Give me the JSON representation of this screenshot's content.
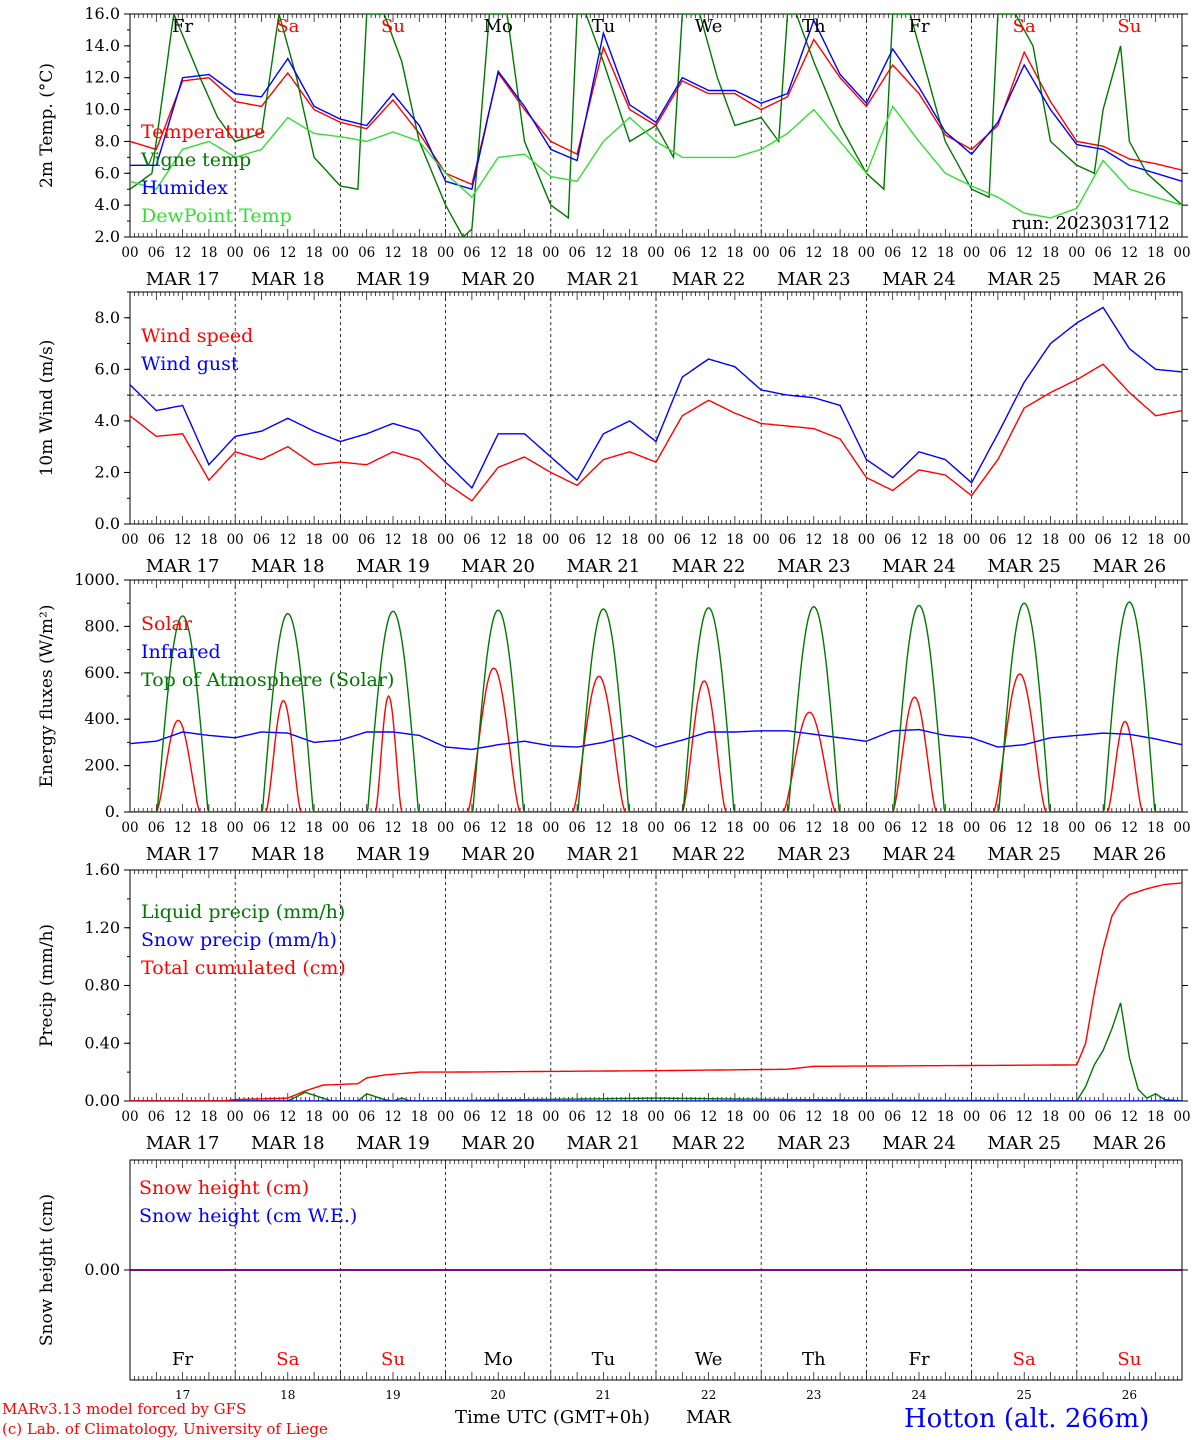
{
  "days": {
    "dates": [
      "MAR 17",
      "MAR 18",
      "MAR 19",
      "MAR 20",
      "MAR 21",
      "MAR 22",
      "MAR 23",
      "MAR 24",
      "MAR 25",
      "MAR 26"
    ],
    "weekdays": [
      "Fr",
      "Sa",
      "Su",
      "Mo",
      "Tu",
      "We",
      "Th",
      "Fr",
      "Sa",
      "Su"
    ],
    "weekend_flags": [
      false,
      true,
      true,
      false,
      false,
      false,
      false,
      false,
      true,
      true
    ],
    "day_numbers": [
      "17",
      "18",
      "19",
      "20",
      "21",
      "22",
      "23",
      "24",
      "25",
      "26"
    ],
    "hour_ticks": [
      "00",
      "06",
      "12",
      "18"
    ],
    "final_tick": "00"
  },
  "colors": {
    "red": "#ff0000",
    "blue": "#0000ff",
    "dark_green": "#007700",
    "light_green": "#33dd33",
    "purple": "#7f007f",
    "weekend_label": "#ff0000",
    "weekday_label": "#000000"
  },
  "footer": {
    "model": "MARv3.13 model forced by GFS",
    "lab": "(c) Lab. of Climatology, University of Liege",
    "axis_title": "Time UTC (GMT+0h)",
    "month": "MAR",
    "station": "Hotton (alt. 266m)"
  },
  "chart_data": [
    {
      "type": "line",
      "ylabel": "2m Temp. (°C)",
      "ylim": [
        2.0,
        16.0
      ],
      "yticks": [
        "2.0",
        "4.0",
        "6.0",
        "8.0",
        "10.0",
        "12.0",
        "14.0",
        "16.0"
      ],
      "xlim_hours": [
        0,
        240
      ],
      "annotation": "run: 2023031712",
      "series": [
        {
          "name": "Temperature",
          "color": "#ff0000",
          "x": [
            0,
            6,
            12,
            18,
            24,
            30,
            36,
            42,
            48,
            54,
            60,
            66,
            72,
            78,
            84,
            90,
            96,
            102,
            108,
            114,
            120,
            126,
            132,
            138,
            144,
            150,
            156,
            162,
            168,
            174,
            180,
            186,
            192,
            198,
            204,
            210,
            216,
            222,
            228,
            234,
            240
          ],
          "y": [
            8.0,
            7.5,
            11.8,
            12.0,
            10.5,
            10.2,
            12.3,
            10.0,
            9.2,
            8.8,
            10.6,
            8.5,
            6.0,
            5.3,
            12.3,
            10.0,
            8.0,
            7.2,
            13.9,
            10.0,
            9.0,
            11.8,
            11.0,
            11.0,
            10.0,
            10.8,
            14.4,
            12.0,
            10.2,
            12.8,
            11.0,
            8.4,
            7.5,
            9.0,
            13.6,
            10.5,
            8.0,
            7.7,
            6.9,
            6.6,
            6.2
          ]
        },
        {
          "name": "Vigne temp",
          "color": "#007700",
          "x": [
            0,
            5,
            10,
            13,
            16,
            20,
            24,
            30,
            34,
            36,
            38,
            42,
            48,
            52,
            54,
            58,
            62,
            66,
            72,
            76,
            78,
            82,
            86,
            90,
            96,
            100,
            102,
            104,
            108,
            114,
            120,
            124,
            126,
            130,
            134,
            138,
            144,
            148,
            150,
            152,
            156,
            162,
            168,
            172,
            174,
            178,
            182,
            186,
            192,
            196,
            198,
            202,
            206,
            210,
            216,
            220,
            222,
            226,
            228,
            232,
            236,
            240
          ],
          "y": [
            5.0,
            6.0,
            16.0,
            14.0,
            12.0,
            9.5,
            8.0,
            8.5,
            16.0,
            14.0,
            12.0,
            7.0,
            5.2,
            5.0,
            16.0,
            16.0,
            13.0,
            8.0,
            4.0,
            2.0,
            2.5,
            16.0,
            16.0,
            8.0,
            4.0,
            3.2,
            16.0,
            16.0,
            13.0,
            8.0,
            9.0,
            7.0,
            16.0,
            16.0,
            12.0,
            9.0,
            9.5,
            8.0,
            16.0,
            16.0,
            13.0,
            9.0,
            6.0,
            5.0,
            16.0,
            16.0,
            12.0,
            8.0,
            5.0,
            4.5,
            16.0,
            16.0,
            14.0,
            8.0,
            6.5,
            6.0,
            10.0,
            14.0,
            8.0,
            6.0,
            5.0,
            4.0
          ]
        },
        {
          "name": "Humidex",
          "color": "#0000ff",
          "x": [
            0,
            6,
            12,
            18,
            24,
            30,
            36,
            42,
            48,
            54,
            60,
            66,
            72,
            78,
            84,
            90,
            96,
            102,
            108,
            114,
            120,
            126,
            132,
            138,
            144,
            150,
            156,
            162,
            168,
            174,
            180,
            186,
            192,
            198,
            204,
            210,
            216,
            222,
            228,
            234,
            240
          ],
          "y": [
            6.5,
            6.5,
            12.0,
            12.2,
            11.0,
            10.8,
            13.2,
            10.2,
            9.4,
            9.0,
            11.0,
            9.0,
            5.5,
            5.0,
            12.4,
            10.2,
            7.5,
            6.8,
            14.8,
            10.3,
            9.2,
            12.0,
            11.2,
            11.2,
            10.4,
            11.0,
            15.6,
            12.2,
            10.4,
            13.8,
            11.4,
            8.6,
            7.2,
            9.2,
            12.8,
            10.0,
            7.8,
            7.5,
            6.5,
            6.0,
            5.5
          ]
        },
        {
          "name": "DewPoint Temp",
          "color": "#33dd33",
          "x": [
            0,
            6,
            12,
            18,
            24,
            30,
            36,
            42,
            48,
            54,
            60,
            66,
            72,
            78,
            84,
            90,
            96,
            102,
            108,
            114,
            120,
            126,
            132,
            138,
            144,
            150,
            156,
            162,
            168,
            174,
            180,
            186,
            192,
            198,
            204,
            210,
            216,
            222,
            228,
            234,
            240
          ],
          "y": [
            5.5,
            5.0,
            7.5,
            8.0,
            7.0,
            7.5,
            9.5,
            8.5,
            8.3,
            8.0,
            8.6,
            8.0,
            6.0,
            4.5,
            7.0,
            7.2,
            5.8,
            5.5,
            8.0,
            9.5,
            8.0,
            7.0,
            7.0,
            7.0,
            7.5,
            8.5,
            10.0,
            8.0,
            6.0,
            10.2,
            8.0,
            6.0,
            5.2,
            4.5,
            3.5,
            3.2,
            3.8,
            6.8,
            5.0,
            4.5,
            4.0
          ]
        }
      ]
    },
    {
      "type": "line",
      "ylabel": "10m Wind (m/s)",
      "ylim": [
        0.0,
        9.0
      ],
      "yticks": [
        "0.0",
        "2.0",
        "4.0",
        "6.0",
        "8.0"
      ],
      "xlim_hours": [
        0,
        240
      ],
      "reference_line": 5.0,
      "series": [
        {
          "name": "Wind speed",
          "color": "#ff0000",
          "x": [
            0,
            6,
            12,
            18,
            24,
            30,
            36,
            42,
            48,
            54,
            60,
            66,
            72,
            78,
            84,
            90,
            96,
            102,
            108,
            114,
            120,
            126,
            132,
            138,
            144,
            150,
            156,
            162,
            168,
            174,
            180,
            186,
            192,
            198,
            204,
            210,
            216,
            222,
            228,
            234,
            240
          ],
          "y": [
            4.2,
            3.4,
            3.5,
            1.7,
            2.8,
            2.5,
            3.0,
            2.3,
            2.4,
            2.3,
            2.8,
            2.5,
            1.6,
            0.9,
            2.2,
            2.6,
            2.0,
            1.5,
            2.5,
            2.8,
            2.4,
            4.2,
            4.8,
            4.3,
            3.9,
            3.8,
            3.7,
            3.3,
            1.8,
            1.3,
            2.1,
            1.9,
            1.1,
            2.5,
            4.5,
            5.1,
            5.6,
            6.2,
            5.1,
            4.2,
            4.4
          ]
        },
        {
          "name": "Wind gust",
          "color": "#0000ff",
          "x": [
            0,
            6,
            12,
            18,
            24,
            30,
            36,
            42,
            48,
            54,
            60,
            66,
            72,
            78,
            84,
            90,
            96,
            102,
            108,
            114,
            120,
            126,
            132,
            138,
            144,
            150,
            156,
            162,
            168,
            174,
            180,
            186,
            192,
            198,
            204,
            210,
            216,
            222,
            228,
            234,
            240
          ],
          "y": [
            5.4,
            4.4,
            4.6,
            2.3,
            3.4,
            3.6,
            4.1,
            3.6,
            3.2,
            3.5,
            3.9,
            3.6,
            2.4,
            1.4,
            3.5,
            3.5,
            2.6,
            1.7,
            3.5,
            4.0,
            3.2,
            5.7,
            6.4,
            6.1,
            5.2,
            5.0,
            4.9,
            4.6,
            2.5,
            1.8,
            2.8,
            2.5,
            1.6,
            3.5,
            5.5,
            7.0,
            7.8,
            8.4,
            6.8,
            6.0,
            5.9
          ]
        }
      ]
    },
    {
      "type": "line",
      "ylabel": "Energy fluxes (W/m²)",
      "ylim": [
        0,
        1000
      ],
      "yticks": [
        "0.",
        "200.",
        "400.",
        "600.",
        "800.",
        "1000."
      ],
      "xlim_hours": [
        0,
        240
      ],
      "series": [
        {
          "name": "Solar",
          "color": "#ff0000",
          "peak_hour_of_day": 11,
          "daily_peaks": [
            395,
            480,
            500,
            620,
            585,
            565,
            430,
            495,
            595,
            390
          ],
          "daily_half_widths_h": [
            5,
            4,
            3,
            6,
            6,
            5,
            6,
            5,
            6,
            4
          ]
        },
        {
          "name": "Infrared",
          "color": "#0000ff",
          "x": [
            0,
            6,
            12,
            18,
            24,
            30,
            36,
            42,
            48,
            54,
            60,
            66,
            72,
            78,
            84,
            90,
            96,
            102,
            108,
            114,
            120,
            126,
            132,
            138,
            144,
            150,
            156,
            162,
            168,
            174,
            180,
            186,
            192,
            198,
            204,
            210,
            216,
            222,
            228,
            234,
            240
          ],
          "y": [
            295,
            305,
            345,
            330,
            320,
            345,
            340,
            300,
            310,
            345,
            345,
            330,
            280,
            270,
            290,
            305,
            285,
            280,
            300,
            330,
            280,
            310,
            345,
            345,
            350,
            350,
            335,
            320,
            305,
            350,
            355,
            330,
            320,
            280,
            290,
            320,
            330,
            340,
            335,
            315,
            290
          ]
        },
        {
          "name": "Top of Atmosphere (Solar)",
          "color": "#007700",
          "daily_peaks": [
            845,
            855,
            865,
            870,
            875,
            880,
            885,
            890,
            900,
            905
          ],
          "peak_hour_of_day": 12,
          "daylight_half_width_h": 5.8
        }
      ]
    },
    {
      "type": "line",
      "ylabel": "Precip (mm/h)",
      "ylim": [
        0.0,
        1.6
      ],
      "yticks": [
        "0.00",
        "0.40",
        "0.80",
        "1.20",
        "1.60"
      ],
      "xlim_hours": [
        0,
        240
      ],
      "series": [
        {
          "name": "Liquid precip (mm/h)",
          "color": "#007700",
          "x": [
            0,
            36,
            38,
            40,
            42,
            44,
            46,
            48,
            52,
            54,
            56,
            58,
            60,
            62,
            64,
            120,
            150,
            216,
            218,
            220,
            222,
            224,
            226,
            228,
            230,
            232,
            234,
            236,
            240
          ],
          "y": [
            0,
            0,
            0.03,
            0.06,
            0.04,
            0.02,
            0,
            0,
            0,
            0.05,
            0.03,
            0.01,
            0,
            0.02,
            0,
            0.02,
            0.01,
            0,
            0.1,
            0.25,
            0.35,
            0.5,
            0.68,
            0.3,
            0.08,
            0.02,
            0.05,
            0.01,
            0
          ]
        },
        {
          "name": "Snow precip (mm/h)",
          "color": "#0000ff",
          "x": [
            0,
            240
          ],
          "y": [
            0,
            0
          ]
        },
        {
          "name": "Total cumulated (cm)",
          "color": "#ff0000",
          "x": [
            0,
            21,
            24,
            36,
            40,
            44,
            52,
            54,
            58,
            66,
            72,
            120,
            150,
            156,
            216,
            218,
            220,
            222,
            224,
            226,
            228,
            232,
            236,
            240
          ],
          "y": [
            0,
            0,
            0.01,
            0.02,
            0.07,
            0.11,
            0.12,
            0.16,
            0.18,
            0.2,
            0.2,
            0.21,
            0.22,
            0.24,
            0.25,
            0.4,
            0.75,
            1.05,
            1.28,
            1.38,
            1.43,
            1.47,
            1.5,
            1.51
          ]
        }
      ]
    },
    {
      "type": "line",
      "ylabel": "Snow height (cm)",
      "ylim": [
        -1.0,
        1.0
      ],
      "yticks": [
        "0.00"
      ],
      "xlim_hours": [
        0,
        240
      ],
      "series": [
        {
          "name": "Snow height (cm)",
          "color": "#ff0000",
          "x": [
            0,
            240
          ],
          "y": [
            0,
            0
          ]
        },
        {
          "name": "Snow height (cm W.E.)",
          "color": "#0000ff",
          "x": [
            0,
            240
          ],
          "y": [
            0,
            0
          ]
        }
      ]
    }
  ]
}
